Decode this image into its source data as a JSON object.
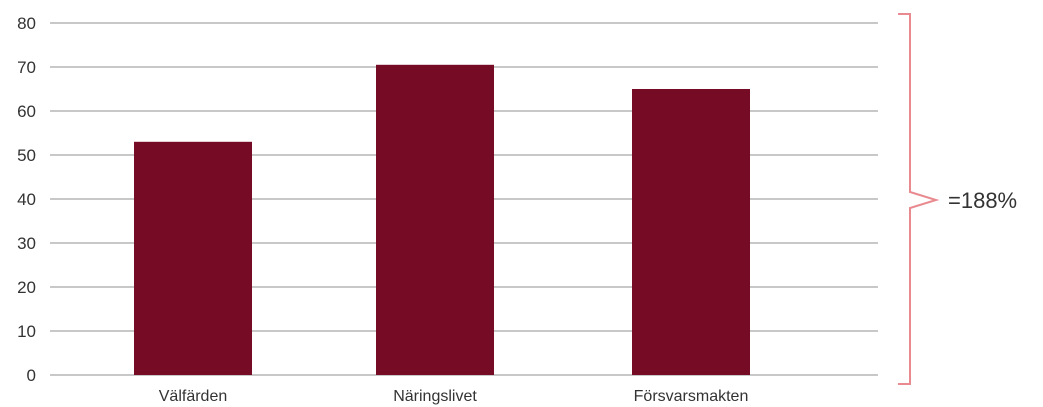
{
  "chart_data": {
    "type": "bar",
    "categories": [
      "Välfärden",
      "Näringslivet",
      "Försvarsmakten"
    ],
    "values": [
      53,
      70.5,
      65
    ],
    "yticks": [
      "0",
      "10",
      "20",
      "30",
      "40",
      "50",
      "60",
      "70",
      "80"
    ],
    "ylim": [
      0,
      80
    ],
    "grid": true,
    "bar_color": "#760b26",
    "grid_color": "#b5b5b5",
    "bracket_color": "#e88a8f",
    "annotation": "=188%"
  }
}
